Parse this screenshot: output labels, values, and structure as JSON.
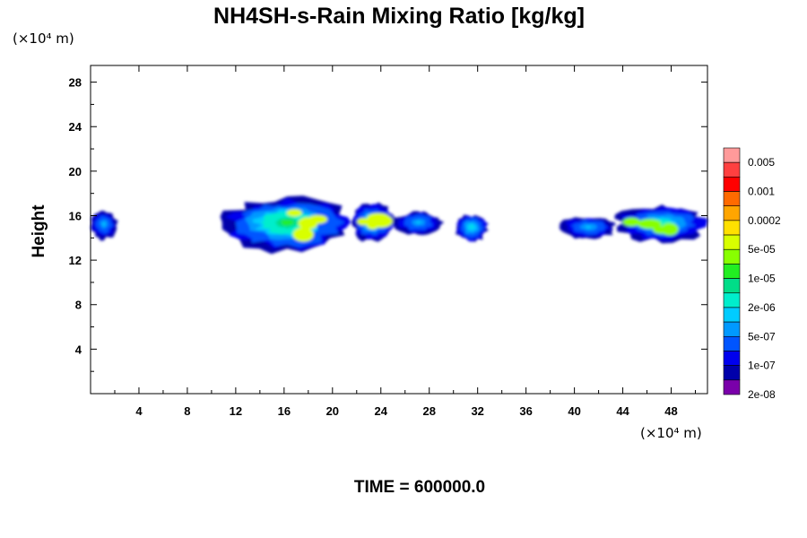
{
  "chart_data": {
    "type": "heatmap",
    "title": "NH4SH-s-Rain Mixing Ratio [kg/kg]",
    "xlabel": "",
    "ylabel": "Height",
    "x_unit": "(×10⁴ m)",
    "y_unit": "(×10⁴ m)",
    "xlim": [
      0,
      51
    ],
    "ylim": [
      0,
      29.5
    ],
    "x_ticks": [
      4,
      8,
      12,
      16,
      20,
      24,
      28,
      32,
      36,
      40,
      44,
      48
    ],
    "y_ticks": [
      4,
      8,
      12,
      16,
      20,
      24,
      28
    ],
    "colorbar": {
      "labels": [
        "0.005",
        "0.001",
        "0.0002",
        "5e-05",
        "1e-05",
        "2e-06",
        "5e-07",
        "1e-07",
        "2e-08"
      ],
      "colors": [
        "#ff9a9a",
        "#ff4040",
        "#ff0000",
        "#ff6a00",
        "#ffa500",
        "#ffe000",
        "#d8ff00",
        "#88ff00",
        "#22ee22",
        "#00dd88",
        "#00eecc",
        "#00ccff",
        "#0099ff",
        "#0055ff",
        "#0000ee",
        "#0000aa",
        "#7a00aa"
      ]
    },
    "regions": [
      {
        "x0": 0,
        "x1": 2.2,
        "y0": 14.0,
        "y1": 16.5,
        "level": 0.45
      },
      {
        "x0": 11.0,
        "x1": 21.5,
        "y0": 13.0,
        "y1": 17.8,
        "level": 0.85
      },
      {
        "x0": 21.5,
        "x1": 25.2,
        "y0": 13.8,
        "y1": 17.2,
        "level": 0.7
      },
      {
        "x0": 25.2,
        "x1": 29.0,
        "y0": 14.3,
        "y1": 16.5,
        "level": 0.45
      },
      {
        "x0": 30.2,
        "x1": 32.8,
        "y0": 13.8,
        "y1": 16.2,
        "level": 0.6
      },
      {
        "x0": 38.8,
        "x1": 43.5,
        "y0": 14.0,
        "y1": 16.0,
        "level": 0.45
      },
      {
        "x0": 43.5,
        "x1": 51.0,
        "y0": 13.8,
        "y1": 17.0,
        "level": 0.65
      }
    ]
  },
  "time_label": "TIME = 600000.0"
}
